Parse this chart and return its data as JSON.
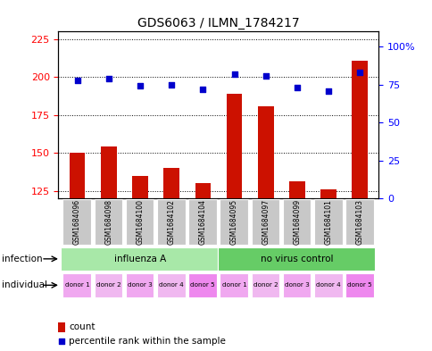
{
  "title": "GDS6063 / ILMN_1784217",
  "samples": [
    "GSM1684096",
    "GSM1684098",
    "GSM1684100",
    "GSM1684102",
    "GSM1684104",
    "GSM1684095",
    "GSM1684097",
    "GSM1684099",
    "GSM1684101",
    "GSM1684103"
  ],
  "counts": [
    150,
    154,
    135,
    140,
    130,
    189,
    181,
    131,
    126,
    211
  ],
  "percentiles": [
    78,
    79,
    74,
    75,
    72,
    82,
    81,
    73,
    71,
    83
  ],
  "ylim_left": [
    120,
    230
  ],
  "yticks_left": [
    125,
    150,
    175,
    200,
    225
  ],
  "ylim_right": [
    0,
    110
  ],
  "yticks_right": [
    0,
    25,
    50,
    75,
    100
  ],
  "ytick_labels_right": [
    "0",
    "25",
    "50",
    "75",
    "100%"
  ],
  "infection_groups": [
    {
      "label": "influenza A",
      "start": 0,
      "end": 5,
      "color": "#a8e8a8"
    },
    {
      "label": "no virus control",
      "start": 5,
      "end": 10,
      "color": "#66cc66"
    }
  ],
  "individual_labels": [
    "donor 1",
    "donor 2",
    "donor 3",
    "donor 4",
    "donor 5",
    "donor 1",
    "donor 2",
    "donor 3",
    "donor 4",
    "donor 5"
  ],
  "individual_colors": [
    "#f0a8f0",
    "#f0b8f0",
    "#f0a8f0",
    "#f0b8f0",
    "#ee88ee",
    "#f0a8f0",
    "#f0b8f0",
    "#f0a8f0",
    "#f0b8f0",
    "#ee88ee"
  ],
  "bar_color": "#cc1100",
  "dot_color": "#0000cc",
  "bar_width": 0.5,
  "legend_count_color": "#cc1100",
  "legend_dot_color": "#0000cc",
  "sample_box_color": "#c8c8c8"
}
